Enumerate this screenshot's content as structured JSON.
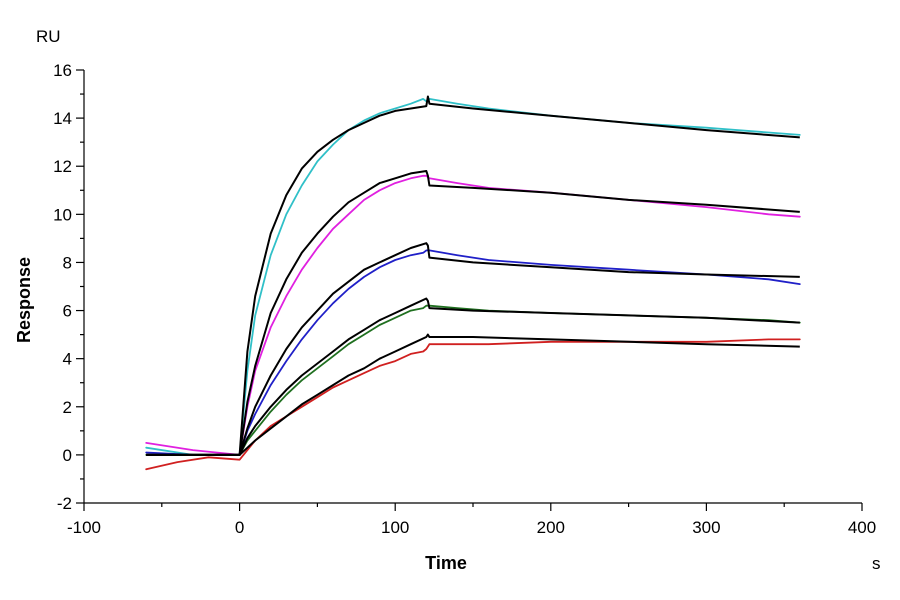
{
  "chart_data": {
    "type": "line",
    "title": "",
    "xlabel": "Time",
    "ylabel": "Response",
    "x_unit": "s",
    "y_unit": "RU",
    "xlim": [
      -100,
      400
    ],
    "ylim": [
      -2,
      16
    ],
    "xticks": [
      -100,
      0,
      100,
      200,
      300,
      400
    ],
    "yticks": [
      -2,
      0,
      2,
      4,
      6,
      8,
      10,
      12,
      14,
      16
    ],
    "grid": false,
    "legend": "none",
    "series": [
      {
        "color": "#30c0c8",
        "style": "data",
        "x": [
          -60,
          -30,
          0,
          5,
          10,
          20,
          30,
          40,
          50,
          60,
          70,
          80,
          90,
          100,
          110,
          118,
          120,
          122,
          140,
          160,
          200,
          250,
          300,
          340,
          360
        ],
        "y": [
          0.3,
          0.0,
          0.0,
          3.5,
          5.8,
          8.3,
          10.0,
          11.2,
          12.2,
          12.9,
          13.5,
          13.9,
          14.2,
          14.4,
          14.6,
          14.8,
          14.7,
          14.8,
          14.6,
          14.4,
          14.1,
          13.8,
          13.6,
          13.4,
          13.3
        ]
      },
      {
        "color": "#e020e0",
        "style": "data",
        "x": [
          -60,
          -30,
          0,
          5,
          10,
          20,
          30,
          40,
          50,
          60,
          70,
          80,
          90,
          100,
          110,
          118,
          120,
          122,
          140,
          160,
          200,
          250,
          300,
          340,
          360
        ],
        "y": [
          0.5,
          0.2,
          0.0,
          2.0,
          3.5,
          5.3,
          6.6,
          7.7,
          8.6,
          9.4,
          10.0,
          10.6,
          11.0,
          11.3,
          11.5,
          11.6,
          11.6,
          11.5,
          11.3,
          11.1,
          10.9,
          10.6,
          10.3,
          10.0,
          9.9
        ]
      },
      {
        "color": "#2020c8",
        "style": "data",
        "x": [
          -60,
          -30,
          0,
          5,
          10,
          20,
          30,
          40,
          50,
          60,
          70,
          80,
          90,
          100,
          110,
          118,
          120,
          122,
          140,
          160,
          200,
          250,
          300,
          340,
          360
        ],
        "y": [
          0.1,
          0.0,
          0.0,
          1.0,
          1.7,
          2.9,
          3.9,
          4.8,
          5.6,
          6.3,
          6.9,
          7.4,
          7.8,
          8.1,
          8.3,
          8.4,
          8.5,
          8.5,
          8.3,
          8.1,
          7.9,
          7.7,
          7.5,
          7.3,
          7.1
        ]
      },
      {
        "color": "#207020",
        "style": "data",
        "x": [
          -60,
          -30,
          0,
          5,
          10,
          20,
          30,
          40,
          50,
          60,
          70,
          80,
          90,
          100,
          110,
          118,
          120,
          122,
          140,
          160,
          200,
          250,
          300,
          340,
          360
        ],
        "y": [
          0.0,
          0.0,
          0.0,
          0.6,
          1.0,
          1.8,
          2.5,
          3.1,
          3.6,
          4.1,
          4.6,
          5.0,
          5.4,
          5.7,
          6.0,
          6.1,
          6.2,
          6.2,
          6.1,
          6.0,
          5.9,
          5.8,
          5.7,
          5.6,
          5.5
        ]
      },
      {
        "color": "#d02020",
        "style": "data",
        "x": [
          -60,
          -40,
          -20,
          0,
          5,
          10,
          20,
          30,
          40,
          50,
          60,
          70,
          80,
          90,
          100,
          110,
          118,
          120,
          122,
          140,
          160,
          200,
          250,
          300,
          340,
          360
        ],
        "y": [
          -0.6,
          -0.3,
          -0.1,
          -0.2,
          0.2,
          0.6,
          1.2,
          1.6,
          2.0,
          2.4,
          2.8,
          3.1,
          3.4,
          3.7,
          3.9,
          4.2,
          4.3,
          4.4,
          4.6,
          4.6,
          4.6,
          4.7,
          4.7,
          4.7,
          4.8,
          4.8
        ]
      },
      {
        "color": "#000000",
        "style": "fit",
        "x": [
          -60,
          0,
          5,
          10,
          20,
          30,
          40,
          50,
          60,
          70,
          80,
          90,
          100,
          110,
          120,
          121,
          122,
          150,
          200,
          250,
          300,
          360
        ],
        "y": [
          0.0,
          0.0,
          4.3,
          6.6,
          9.2,
          10.8,
          11.9,
          12.6,
          13.1,
          13.5,
          13.8,
          14.1,
          14.3,
          14.4,
          14.5,
          14.9,
          14.6,
          14.4,
          14.1,
          13.8,
          13.5,
          13.2
        ]
      },
      {
        "color": "#000000",
        "style": "fit",
        "x": [
          -60,
          0,
          5,
          10,
          20,
          30,
          40,
          50,
          60,
          70,
          80,
          90,
          100,
          110,
          120,
          121,
          122,
          150,
          200,
          250,
          300,
          360
        ],
        "y": [
          0.0,
          0.0,
          2.2,
          3.7,
          5.9,
          7.3,
          8.4,
          9.2,
          9.9,
          10.5,
          10.9,
          11.3,
          11.5,
          11.7,
          11.8,
          11.6,
          11.2,
          11.1,
          10.9,
          10.6,
          10.4,
          10.1
        ]
      },
      {
        "color": "#000000",
        "style": "fit",
        "x": [
          -60,
          0,
          5,
          10,
          20,
          30,
          40,
          50,
          60,
          70,
          80,
          90,
          100,
          110,
          120,
          121,
          122,
          150,
          200,
          250,
          300,
          360
        ],
        "y": [
          0.0,
          0.0,
          1.1,
          2.0,
          3.3,
          4.4,
          5.3,
          6.0,
          6.7,
          7.2,
          7.7,
          8.0,
          8.3,
          8.6,
          8.8,
          8.7,
          8.2,
          8.0,
          7.8,
          7.6,
          7.5,
          7.4
        ]
      },
      {
        "color": "#000000",
        "style": "fit",
        "x": [
          -60,
          0,
          5,
          10,
          20,
          30,
          40,
          50,
          60,
          70,
          80,
          90,
          100,
          110,
          120,
          121,
          122,
          150,
          200,
          250,
          300,
          360
        ],
        "y": [
          0.0,
          0.0,
          0.7,
          1.2,
          2.0,
          2.7,
          3.3,
          3.8,
          4.3,
          4.8,
          5.2,
          5.6,
          5.9,
          6.2,
          6.5,
          6.4,
          6.1,
          6.0,
          5.9,
          5.8,
          5.7,
          5.5
        ]
      },
      {
        "color": "#000000",
        "style": "fit",
        "x": [
          -60,
          0,
          5,
          10,
          20,
          30,
          40,
          50,
          60,
          70,
          80,
          90,
          100,
          110,
          120,
          121,
          122,
          150,
          200,
          250,
          300,
          360
        ],
        "y": [
          0.0,
          0.0,
          0.3,
          0.6,
          1.1,
          1.6,
          2.1,
          2.5,
          2.9,
          3.3,
          3.6,
          4.0,
          4.3,
          4.6,
          4.9,
          5.0,
          4.9,
          4.9,
          4.8,
          4.7,
          4.6,
          4.5
        ]
      }
    ]
  }
}
